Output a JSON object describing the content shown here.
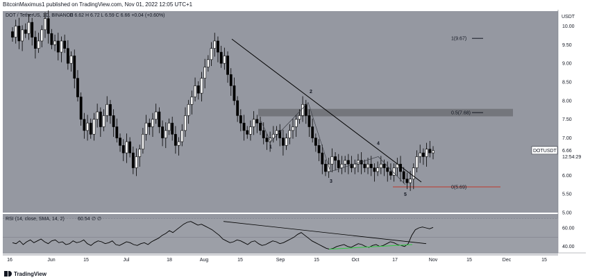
{
  "header": {
    "published_text": "BitcoinMaximus1 published on TradingView.com, Nov 01, 2022 12:05 UTC+1"
  },
  "footer": {
    "brand": "TradingView"
  },
  "chart_data": [
    {
      "type": "candlestick",
      "symbol_line": {
        "symbol": "DOT / TetherUS, 1D, BINANCE",
        "ohlc": "O 6.62  H 6.72  L 6.59  C 6.66  +0.04 (+0.60%)"
      },
      "currency": "USDT",
      "ylim": [
        5.0,
        10.4
      ],
      "y_ticks": [
        "10.00",
        "9.50",
        "9.00",
        "8.50",
        "8.00",
        "7.50",
        "7.00",
        "6.50",
        "6.00",
        "5.50",
        "5.00"
      ],
      "x_ticks": [
        "16",
        "Jun",
        "15",
        "Jul",
        "18",
        "Aug",
        "15",
        "Sep",
        "15",
        "Oct",
        "17",
        "Nov",
        "15",
        "Dec",
        "15"
      ],
      "last_price": {
        "label": "DOTUSDT",
        "value": "6.66",
        "countdown": "12:54:29"
      },
      "resistance_zone": {
        "low": 7.58,
        "high": 7.78,
        "color": "#6e7076"
      },
      "fib_levels": [
        {
          "label": "1(9.67)",
          "value": 9.67
        },
        {
          "label": "0.5(7.68)",
          "value": 7.68
        },
        {
          "label": "0(5.69)",
          "value": 5.69,
          "color": "#c0392b"
        }
      ],
      "wave_labels": [
        "1",
        "2",
        "3",
        "4",
        "5"
      ],
      "candles_close": [
        9.7,
        10.0,
        9.6,
        9.9,
        9.8,
        10.1,
        9.7,
        9.4,
        9.6,
        9.9,
        10.2,
        9.8,
        9.5,
        9.6,
        9.3,
        9.6,
        9.4,
        9.0,
        9.2,
        8.6,
        8.1,
        7.5,
        7.2,
        7.4,
        7.1,
        7.5,
        7.7,
        7.3,
        7.6,
        7.9,
        7.6,
        7.3,
        7.0,
        6.8,
        6.6,
        6.9,
        6.6,
        6.2,
        6.5,
        6.7,
        7.1,
        7.4,
        7.3,
        7.5,
        7.7,
        7.3,
        7.0,
        7.2,
        7.4,
        7.1,
        6.8,
        6.9,
        7.2,
        7.6,
        7.9,
        8.1,
        8.4,
        8.2,
        8.6,
        8.9,
        9.1,
        9.4,
        9.6,
        9.3,
        9.0,
        9.2,
        8.7,
        8.4,
        8.0,
        7.6,
        7.4,
        7.2,
        7.1,
        7.3,
        7.5,
        7.4,
        7.2,
        7.0,
        6.9,
        7.0,
        7.1,
        7.2,
        7.0,
        6.8,
        7.0,
        7.2,
        7.3,
        7.5,
        7.6,
        7.9,
        7.6,
        7.3,
        7.0,
        6.8,
        6.6,
        6.3,
        6.1,
        6.3,
        6.5,
        6.4,
        6.2,
        6.3,
        6.4,
        6.3,
        6.2,
        6.3,
        6.4,
        6.3,
        6.2,
        6.3,
        6.2,
        6.1,
        6.2,
        6.3,
        6.2,
        6.1,
        6.0,
        6.2,
        6.3,
        6.1,
        5.9,
        5.8,
        5.9,
        6.2,
        6.5,
        6.6,
        6.5,
        6.7,
        6.6,
        6.66
      ],
      "rsi": {
        "label": "RSI (14, close, SMA, 14, 2)",
        "value": "60.54",
        "extra": "∅ ∅",
        "ylim": [
          33,
          75
        ],
        "y_ticks": [
          "60.00",
          "40.00"
        ],
        "band_upper": 70,
        "band_lower": 30,
        "line_color": "#000000",
        "values": [
          44,
          43,
          46,
          42,
          45,
          47,
          44,
          46,
          48,
          45,
          43,
          46,
          47,
          44,
          45,
          42,
          43,
          46,
          44,
          45,
          47,
          43,
          41,
          44,
          46,
          45,
          43,
          44,
          46,
          42,
          41,
          43,
          45,
          44,
          42,
          41,
          43,
          44,
          42,
          45,
          47,
          49,
          52,
          54,
          57,
          55,
          58,
          61,
          64,
          66,
          67,
          65,
          63,
          64,
          62,
          60,
          58,
          55,
          52,
          48,
          46,
          44,
          45,
          47,
          46,
          44,
          42,
          45,
          46,
          43,
          41,
          42,
          44,
          46,
          45,
          43,
          44,
          46,
          48,
          50,
          53,
          55,
          52,
          49,
          46,
          44,
          42,
          40,
          38,
          37,
          38,
          40,
          41,
          42,
          40,
          39,
          41,
          43,
          42,
          40,
          39,
          41,
          42,
          40,
          41,
          43,
          45,
          44,
          42,
          41,
          40,
          43,
          52,
          58,
          60,
          61,
          60,
          59,
          60.54
        ]
      }
    }
  ]
}
